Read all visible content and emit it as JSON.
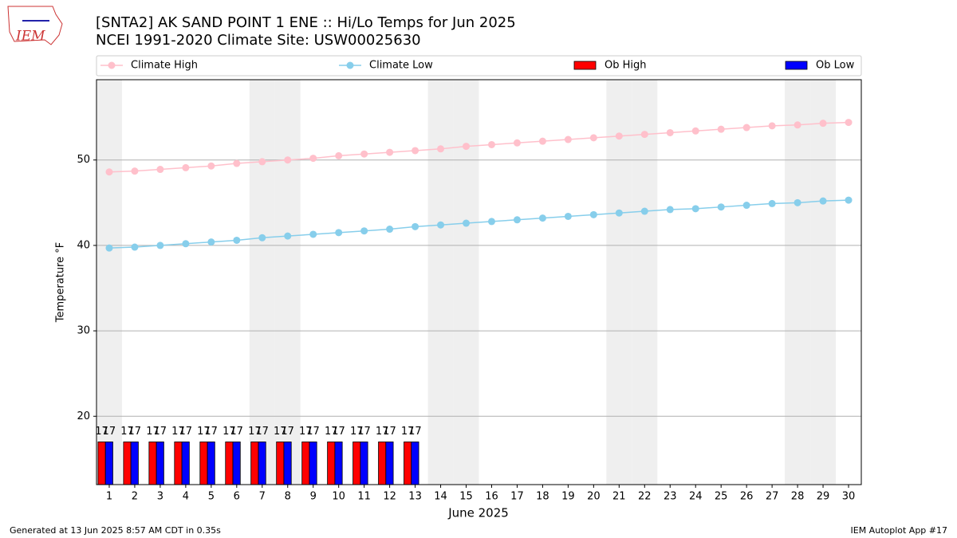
{
  "logo_text": "IEM",
  "chart_data": {
    "type": "bar_line",
    "title": "[SNTA2] AK SAND POINT 1 ENE :: Hi/Lo Temps for Jun 2025",
    "subtitle": "NCEI 1991-2020 Climate Site: USW00025630",
    "xlabel": "June 2025",
    "ylabel": "Temperature °F",
    "x": [
      1,
      2,
      3,
      4,
      5,
      6,
      7,
      8,
      9,
      10,
      11,
      12,
      13,
      14,
      15,
      16,
      17,
      18,
      19,
      20,
      21,
      22,
      23,
      24,
      25,
      26,
      27,
      28,
      29,
      30
    ],
    "xlim": [
      0.5,
      30.5
    ],
    "xticks": [
      1,
      2,
      3,
      4,
      5,
      6,
      7,
      8,
      9,
      10,
      11,
      12,
      13,
      14,
      15,
      16,
      17,
      18,
      19,
      20,
      21,
      22,
      23,
      24,
      25,
      26,
      27,
      28,
      29,
      30
    ],
    "ylim": [
      12,
      59.4
    ],
    "yticks": [
      20,
      30,
      40,
      50
    ],
    "grid": true,
    "legend": "top",
    "series": [
      {
        "name": "Climate High",
        "type": "line",
        "color": "#ffc0cb",
        "values": [
          48.6,
          48.7,
          48.9,
          49.1,
          49.3,
          49.6,
          49.8,
          50.0,
          50.2,
          50.5,
          50.7,
          50.9,
          51.1,
          51.3,
          51.6,
          51.8,
          52.0,
          52.2,
          52.4,
          52.6,
          52.8,
          53.0,
          53.2,
          53.4,
          53.6,
          53.8,
          54.0,
          54.1,
          54.3,
          54.4
        ]
      },
      {
        "name": "Climate Low",
        "type": "line",
        "color": "#87ceeb",
        "values": [
          39.7,
          39.8,
          40.0,
          40.2,
          40.4,
          40.6,
          40.9,
          41.1,
          41.3,
          41.5,
          41.7,
          41.9,
          42.2,
          42.4,
          42.6,
          42.8,
          43.0,
          43.2,
          43.4,
          43.6,
          43.8,
          44.0,
          44.2,
          44.3,
          44.5,
          44.7,
          44.9,
          45.0,
          45.2,
          45.3
        ]
      },
      {
        "name": "Ob High",
        "type": "bar",
        "color": "#ff0000",
        "values": [
          17,
          17,
          17,
          17,
          17,
          17,
          17,
          17,
          17,
          17,
          17,
          17,
          17,
          null,
          null,
          null,
          null,
          null,
          null,
          null,
          null,
          null,
          null,
          null,
          null,
          null,
          null,
          null,
          null,
          null
        ]
      },
      {
        "name": "Ob Low",
        "type": "bar",
        "color": "#0000ff",
        "values": [
          17,
          17,
          17,
          17,
          17,
          17,
          17,
          17,
          17,
          17,
          17,
          17,
          17,
          null,
          null,
          null,
          null,
          null,
          null,
          null,
          null,
          null,
          null,
          null,
          null,
          null,
          null,
          null,
          null,
          null
        ]
      }
    ],
    "footer_left": "Generated at 13 Jun 2025 8:57 AM CDT in 0.35s",
    "footer_right": "IEM Autoplot App #17"
  }
}
